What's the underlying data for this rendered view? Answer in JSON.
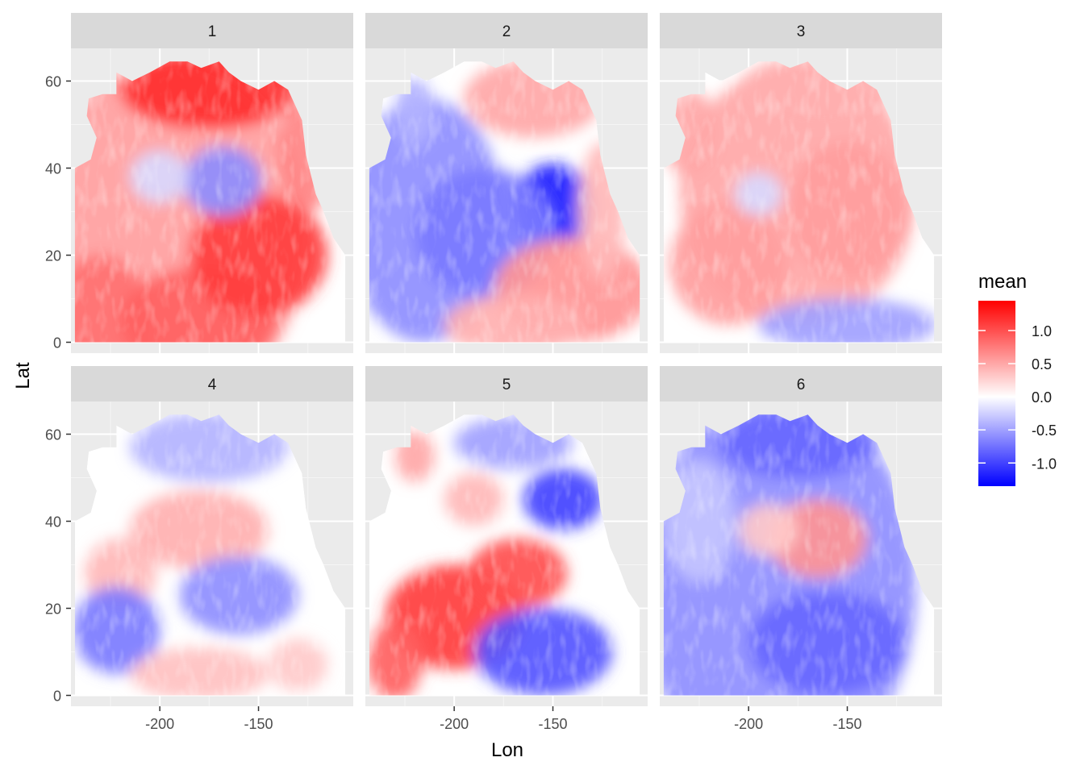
{
  "chart_data": {
    "type": "heatmap",
    "title": "",
    "xlabel": "Lon",
    "ylabel": "Lat",
    "xlim": [
      -245,
      -102
    ],
    "ylim": [
      -2.5,
      67.5
    ],
    "x_ticks": [
      -200,
      -150
    ],
    "x_tick_labels": [
      "-200",
      "-150"
    ],
    "y_ticks": [
      0,
      20,
      40,
      60
    ],
    "y_tick_labels": [
      "0",
      "20",
      "40",
      "60"
    ],
    "grid": true,
    "facet_layout": {
      "rows": 2,
      "cols": 3
    },
    "legend": {
      "title": "mean",
      "position": "right",
      "ticks": [
        1.0,
        0.5,
        0.0,
        -0.5,
        -1.0
      ],
      "tick_labels": [
        "1.0",
        "0.5",
        "0.0",
        "-0.5",
        "-1.0"
      ],
      "range": [
        -1.35,
        1.45
      ],
      "colors": {
        "low": "#0000ff",
        "mid": "#ffffff",
        "high": "#ff0000"
      }
    },
    "panels": [
      {
        "label": "1",
        "features": [
          {
            "lon": -195,
            "lat": 25,
            "v": 0.55,
            "rx": 70,
            "ry": 40
          },
          {
            "lon": -230,
            "lat": 5,
            "v": 0.8,
            "rx": 25,
            "ry": 15
          },
          {
            "lon": -180,
            "lat": 5,
            "v": 0.9,
            "rx": 40,
            "ry": 12
          },
          {
            "lon": -150,
            "lat": 20,
            "v": 1.1,
            "rx": 35,
            "ry": 14
          },
          {
            "lon": -175,
            "lat": 58,
            "v": 1.2,
            "rx": 45,
            "ry": 9
          },
          {
            "lon": -125,
            "lat": 45,
            "v": 0.7,
            "rx": 15,
            "ry": 15
          },
          {
            "lon": -168,
            "lat": 37,
            "v": -0.6,
            "rx": 20,
            "ry": 8
          },
          {
            "lon": -200,
            "lat": 38,
            "v": -0.2,
            "rx": 15,
            "ry": 6
          }
        ]
      },
      {
        "label": "2",
        "features": [
          {
            "lon": -215,
            "lat": 28,
            "v": -0.6,
            "rx": 40,
            "ry": 28
          },
          {
            "lon": -150,
            "lat": 31,
            "v": -1.2,
            "rx": 20,
            "ry": 10
          },
          {
            "lon": -185,
            "lat": 25,
            "v": -0.7,
            "rx": 35,
            "ry": 15
          },
          {
            "lon": -140,
            "lat": 12,
            "v": 0.6,
            "rx": 40,
            "ry": 12
          },
          {
            "lon": -170,
            "lat": 4,
            "v": 0.45,
            "rx": 35,
            "ry": 7
          },
          {
            "lon": -160,
            "lat": 56,
            "v": 0.5,
            "rx": 35,
            "ry": 9
          },
          {
            "lon": -125,
            "lat": 30,
            "v": 0.4,
            "rx": 12,
            "ry": 16
          },
          {
            "lon": -220,
            "lat": 53,
            "v": -0.4,
            "rx": 10,
            "ry": 8
          }
        ]
      },
      {
        "label": "3",
        "features": [
          {
            "lon": -175,
            "lat": 34,
            "v": 0.5,
            "rx": 60,
            "ry": 30
          },
          {
            "lon": -210,
            "lat": 18,
            "v": 0.55,
            "rx": 30,
            "ry": 14
          },
          {
            "lon": -150,
            "lat": 30,
            "v": 0.55,
            "rx": 30,
            "ry": 16
          },
          {
            "lon": -195,
            "lat": 34,
            "v": -0.2,
            "rx": 12,
            "ry": 5
          },
          {
            "lon": -150,
            "lat": 4,
            "v": -0.5,
            "rx": 45,
            "ry": 6
          },
          {
            "lon": -165,
            "lat": 58,
            "v": 0.45,
            "rx": 40,
            "ry": 8
          },
          {
            "lon": -230,
            "lat": 48,
            "v": 0.5,
            "rx": 14,
            "ry": 10
          }
        ]
      },
      {
        "label": "4",
        "features": [
          {
            "lon": -180,
            "lat": 38,
            "v": 0.45,
            "rx": 35,
            "ry": 9
          },
          {
            "lon": -220,
            "lat": 28,
            "v": 0.4,
            "rx": 18,
            "ry": 8
          },
          {
            "lon": -222,
            "lat": 15,
            "v": -0.7,
            "rx": 22,
            "ry": 10
          },
          {
            "lon": -160,
            "lat": 23,
            "v": -0.6,
            "rx": 30,
            "ry": 9
          },
          {
            "lon": -180,
            "lat": 5,
            "v": 0.35,
            "rx": 35,
            "ry": 6
          },
          {
            "lon": -130,
            "lat": 7,
            "v": 0.3,
            "rx": 15,
            "ry": 6
          },
          {
            "lon": -175,
            "lat": 57,
            "v": -0.4,
            "rx": 40,
            "ry": 8
          }
        ]
      },
      {
        "label": "5",
        "features": [
          {
            "lon": -200,
            "lat": 18,
            "v": 1.1,
            "rx": 35,
            "ry": 12
          },
          {
            "lon": -168,
            "lat": 28,
            "v": 1.0,
            "rx": 25,
            "ry": 8
          },
          {
            "lon": -230,
            "lat": 8,
            "v": 0.9,
            "rx": 14,
            "ry": 9
          },
          {
            "lon": -155,
            "lat": 10,
            "v": -0.9,
            "rx": 35,
            "ry": 10
          },
          {
            "lon": -145,
            "lat": 45,
            "v": -1.0,
            "rx": 20,
            "ry": 7
          },
          {
            "lon": -190,
            "lat": 45,
            "v": 0.4,
            "rx": 15,
            "ry": 6
          },
          {
            "lon": -220,
            "lat": 55,
            "v": 0.5,
            "rx": 10,
            "ry": 6
          },
          {
            "lon": -170,
            "lat": 58,
            "v": -0.5,
            "rx": 30,
            "ry": 6
          }
        ]
      },
      {
        "label": "6",
        "features": [
          {
            "lon": -185,
            "lat": 25,
            "v": -0.6,
            "rx": 70,
            "ry": 45
          },
          {
            "lon": -165,
            "lat": 36,
            "v": 0.6,
            "rx": 25,
            "ry": 9
          },
          {
            "lon": -190,
            "lat": 38,
            "v": 0.3,
            "rx": 15,
            "ry": 6
          },
          {
            "lon": -160,
            "lat": 12,
            "v": -0.8,
            "rx": 40,
            "ry": 12
          },
          {
            "lon": -175,
            "lat": 58,
            "v": -0.8,
            "rx": 40,
            "ry": 8
          },
          {
            "lon": -225,
            "lat": 40,
            "v": -0.3,
            "rx": 18,
            "ry": 14
          }
        ]
      }
    ]
  }
}
